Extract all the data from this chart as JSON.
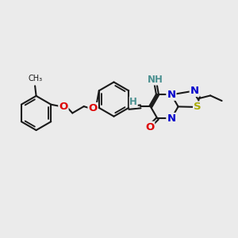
{
  "bg_color": "#ebebeb",
  "bond_color": "#1a1a1a",
  "bond_lw": 1.5,
  "atom_colors": {
    "O": "#dd0000",
    "N": "#0000cc",
    "S": "#aaaa00",
    "teal": "#4a9090",
    "C": "#1a1a1a"
  },
  "figsize": [
    3.0,
    3.0
  ],
  "dpi": 100,
  "xlim": [
    0,
    10
  ],
  "ylim": [
    0,
    10
  ]
}
